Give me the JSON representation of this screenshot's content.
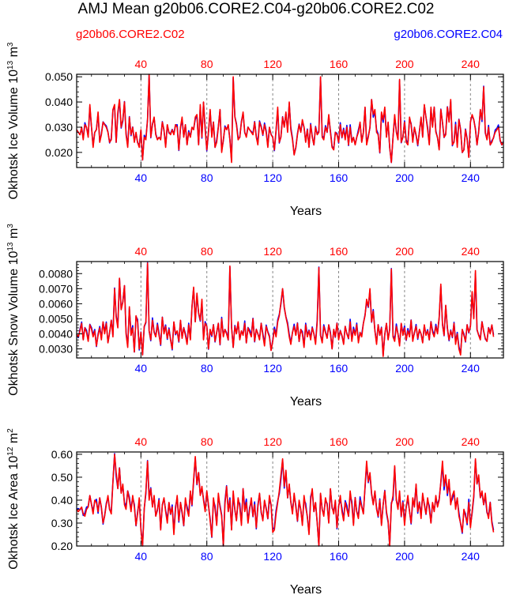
{
  "title": "AMJ Mean g20b06.CORE2.C04-g20b06.CORE2.C02",
  "legend": {
    "left": "g20b06.CORE2.C02",
    "right": "g20b06.CORE2.C04",
    "left_color": "#ff0000",
    "right_color": "#0000ff"
  },
  "colors": {
    "c02": "#ff0000",
    "c04": "#0000ff",
    "grid": "#888888"
  },
  "chart_data": [
    {
      "type": "line",
      "name": "ice-volume",
      "ylabel_main": "Okhotsk Ice Volume 10",
      "ylabel_exp": "13",
      "ylabel_unit": " m",
      "ylabel_unit_exp": "3",
      "xlabel": "Years",
      "xlim": [
        1,
        260
      ],
      "ylim": [
        0.014,
        0.051
      ],
      "yticks": [
        0.02,
        0.03,
        0.04,
        0.05
      ],
      "ytick_labels": [
        "0.020",
        "0.030",
        "0.040",
        "0.050"
      ],
      "xticks": [
        40,
        80,
        120,
        160,
        200,
        240
      ],
      "xtick_labels": [
        "40",
        "80",
        "120",
        "160",
        "200",
        "240"
      ],
      "vlines": [
        40,
        80,
        120,
        160,
        200,
        240
      ],
      "series": [
        {
          "name": "g20b06.CORE2.C04",
          "color": "#0000ff",
          "noise": 0.0007,
          "values": []
        },
        {
          "name": "g20b06.CORE2.C02",
          "color": "#ff0000",
          "values": [
            0.029,
            0.028,
            0.027,
            0.03,
            0.025,
            0.031,
            0.03,
            0.026,
            0.039,
            0.03,
            0.022,
            0.028,
            0.029,
            0.036,
            0.024,
            0.027,
            0.032,
            0.031,
            0.03,
            0.028,
            0.024,
            0.025,
            0.037,
            0.039,
            0.024,
            0.036,
            0.041,
            0.03,
            0.033,
            0.04,
            0.027,
            0.022,
            0.034,
            0.027,
            0.03,
            0.024,
            0.028,
            0.024,
            0.022,
            0.029,
            0.017,
            0.026,
            0.025,
            0.033,
            0.051,
            0.026,
            0.031,
            0.034,
            0.027,
            0.025,
            0.026,
            0.025,
            0.032,
            0.029,
            0.022,
            0.031,
            0.028,
            0.027,
            0.029,
            0.027,
            0.031,
            0.03,
            0.021,
            0.03,
            0.034,
            0.026,
            0.031,
            0.023,
            0.028,
            0.026,
            0.03,
            0.029,
            0.034,
            0.035,
            0.023,
            0.039,
            0.026,
            0.04,
            0.029,
            0.021,
            0.028,
            0.037,
            0.026,
            0.032,
            0.022,
            0.024,
            0.03,
            0.037,
            0.02,
            0.025,
            0.03,
            0.029,
            0.031,
            0.025,
            0.016,
            0.05,
            0.034,
            0.031,
            0.025,
            0.026,
            0.032,
            0.036,
            0.028,
            0.026,
            0.03,
            0.029,
            0.028,
            0.027,
            0.032,
            0.026,
            0.023,
            0.032,
            0.03,
            0.027,
            0.031,
            0.028,
            0.022,
            0.03,
            0.027,
            0.026,
            0.021,
            0.029,
            0.038,
            0.024,
            0.026,
            0.034,
            0.03,
            0.036,
            0.028,
            0.04,
            0.029,
            0.025,
            0.019,
            0.022,
            0.027,
            0.031,
            0.028,
            0.033,
            0.03,
            0.024,
            0.029,
            0.022,
            0.031,
            0.026,
            0.023,
            0.03,
            0.027,
            0.028,
            0.05,
            0.026,
            0.025,
            0.03,
            0.028,
            0.035,
            0.028,
            0.022,
            0.021,
            0.028,
            0.027,
            0.024,
            0.031,
            0.026,
            0.029,
            0.025,
            0.03,
            0.023,
            0.03,
            0.024,
            0.026,
            0.023,
            0.026,
            0.028,
            0.032,
            0.024,
            0.028,
            0.038,
            0.023,
            0.026,
            0.03,
            0.041,
            0.035,
            0.037,
            0.028,
            0.027,
            0.02,
            0.036,
            0.033,
            0.038,
            0.026,
            0.032,
            0.022,
            0.016,
            0.026,
            0.035,
            0.028,
            0.025,
            0.049,
            0.024,
            0.026,
            0.032,
            0.024,
            0.023,
            0.034,
            0.031,
            0.024,
            0.03,
            0.027,
            0.023,
            0.028,
            0.034,
            0.026,
            0.039,
            0.034,
            0.029,
            0.023,
            0.038,
            0.03,
            0.038,
            0.028,
            0.026,
            0.021,
            0.037,
            0.032,
            0.026,
            0.027,
            0.038,
            0.032,
            0.041,
            0.023,
            0.024,
            0.031,
            0.022,
            0.033,
            0.029,
            0.02,
            0.021,
            0.029,
            0.025,
            0.018,
            0.032,
            0.035,
            0.033,
            0.029,
            0.023,
            0.028,
            0.037,
            0.033,
            0.046,
            0.028,
            0.025,
            0.03,
            0.023,
            0.024,
            0.026,
            0.028,
            0.029,
            0.03,
            0.025,
            0.023,
            0.024
          ]
        }
      ]
    },
    {
      "type": "line",
      "name": "snow-volume",
      "ylabel_main": "Okhotsk Snow Volume 10",
      "ylabel_exp": "13",
      "ylabel_unit": " m",
      "ylabel_unit_exp": "3",
      "xlabel": "Years",
      "xlim": [
        1,
        260
      ],
      "ylim": [
        0.0024,
        0.0088
      ],
      "yticks": [
        0.003,
        0.004,
        0.005,
        0.006,
        0.007,
        0.008
      ],
      "ytick_labels": [
        "0.0030",
        "0.0040",
        "0.0050",
        "0.0060",
        "0.0070",
        "0.0080"
      ],
      "xticks": [
        40,
        80,
        120,
        160,
        200,
        240
      ],
      "xtick_labels": [
        "40",
        "80",
        "120",
        "160",
        "200",
        "240"
      ],
      "vlines": [
        40,
        80,
        120,
        160,
        200,
        240
      ],
      "series": [
        {
          "name": "g20b06.CORE2.C04",
          "color": "#0000ff",
          "noise": 0.00012,
          "values": []
        },
        {
          "name": "g20b06.CORE2.C02",
          "color": "#ff0000",
          "values": [
            0.004,
            0.0038,
            0.0042,
            0.0047,
            0.0036,
            0.0044,
            0.0041,
            0.0035,
            0.0046,
            0.0043,
            0.0038,
            0.0042,
            0.0032,
            0.0039,
            0.0044,
            0.0036,
            0.0048,
            0.004,
            0.0047,
            0.0034,
            0.0041,
            0.0049,
            0.0038,
            0.007,
            0.0051,
            0.0044,
            0.0077,
            0.0056,
            0.0061,
            0.0072,
            0.004,
            0.0031,
            0.0058,
            0.0039,
            0.0044,
            0.0028,
            0.0052,
            0.0048,
            0.003,
            0.0041,
            0.0026,
            0.0045,
            0.0048,
            0.0087,
            0.0042,
            0.0036,
            0.0049,
            0.0041,
            0.0038,
            0.0046,
            0.0039,
            0.0033,
            0.0051,
            0.004,
            0.0045,
            0.0037,
            0.0043,
            0.0036,
            0.003,
            0.0048,
            0.004,
            0.0042,
            0.0035,
            0.0049,
            0.0037,
            0.0044,
            0.0039,
            0.0033,
            0.0046,
            0.0036,
            0.0058,
            0.0071,
            0.0048,
            0.0067,
            0.0054,
            0.0049,
            0.0063,
            0.0036,
            0.0047,
            0.0045,
            0.003,
            0.0043,
            0.0039,
            0.0046,
            0.0035,
            0.0041,
            0.0047,
            0.0033,
            0.005,
            0.0038,
            0.0043,
            0.004,
            0.0036,
            0.0085,
            0.0044,
            0.0031,
            0.0045,
            0.004,
            0.0048,
            0.0036,
            0.0042,
            0.0039,
            0.0047,
            0.0034,
            0.0044,
            0.0041,
            0.0038,
            0.005,
            0.0035,
            0.0043,
            0.004,
            0.0036,
            0.0047,
            0.0039,
            0.0032,
            0.0045,
            0.0041,
            0.0038,
            0.0029,
            0.0035,
            0.0043,
            0.0038,
            0.0048,
            0.0052,
            0.0061,
            0.007,
            0.0058,
            0.0051,
            0.0046,
            0.0038,
            0.0033,
            0.0041,
            0.0045,
            0.0039,
            0.0047,
            0.0035,
            0.0043,
            0.004,
            0.0031,
            0.0046,
            0.0038,
            0.0042,
            0.0036,
            0.0044,
            0.004,
            0.0033,
            0.0048,
            0.0084,
            0.0039,
            0.0034,
            0.0045,
            0.0041,
            0.0037,
            0.0046,
            0.004,
            0.003,
            0.0043,
            0.0038,
            0.0047,
            0.0036,
            0.0042,
            0.0039,
            0.0033,
            0.0045,
            0.004,
            0.0037,
            0.0048,
            0.0035,
            0.0043,
            0.0039,
            0.0046,
            0.0034,
            0.0041,
            0.0038,
            0.0047,
            0.0052,
            0.0063,
            0.0058,
            0.007,
            0.0048,
            0.0055,
            0.0042,
            0.0033,
            0.0046,
            0.0039,
            0.0044,
            0.0025,
            0.004,
            0.0047,
            0.0036,
            0.0043,
            0.0083,
            0.0038,
            0.0035,
            0.0045,
            0.004,
            0.0032,
            0.0047,
            0.0039,
            0.0044,
            0.0036,
            0.0042,
            0.0038,
            0.0049,
            0.0035,
            0.0041,
            0.0045,
            0.0037,
            0.0043,
            0.004,
            0.0034,
            0.0046,
            0.0039,
            0.0042,
            0.0036,
            0.0048,
            0.0041,
            0.0038,
            0.0045,
            0.004,
            0.0051,
            0.0073,
            0.0046,
            0.0039,
            0.0059,
            0.0044,
            0.0036,
            0.0042,
            0.0038,
            0.0047,
            0.0033,
            0.004,
            0.003,
            0.0026,
            0.0043,
            0.0039,
            0.0035,
            0.0046,
            0.0041,
            0.0045,
            0.0068,
            0.005,
            0.0082,
            0.0043,
            0.0039,
            0.0036,
            0.0048,
            0.0042,
            0.0037,
            0.0035,
            0.0044,
            0.004,
            0.0046,
            0.0038
          ]
        }
      ]
    },
    {
      "type": "line",
      "name": "ice-area",
      "ylabel_main": "Okhotsk Ice Area 10",
      "ylabel_exp": "12",
      "ylabel_unit": " m",
      "ylabel_unit_exp": "2",
      "xlabel": "Years",
      "xlim": [
        1,
        260
      ],
      "ylim": [
        0.2,
        0.61
      ],
      "yticks": [
        0.2,
        0.3,
        0.4,
        0.5,
        0.6
      ],
      "ytick_labels": [
        "0.20",
        "0.30",
        "0.40",
        "0.50",
        "0.60"
      ],
      "xticks": [
        40,
        80,
        120,
        160,
        200,
        240
      ],
      "xtick_labels": [
        "40",
        "80",
        "120",
        "160",
        "200",
        "240"
      ],
      "vlines": [
        40,
        80,
        120,
        160,
        200,
        240
      ],
      "series": [
        {
          "name": "g20b06.CORE2.C04",
          "color": "#0000ff",
          "noise": 0.012,
          "values": []
        },
        {
          "name": "g20b06.CORE2.C02",
          "color": "#ff0000",
          "values": [
            0.36,
            0.35,
            0.36,
            0.37,
            0.34,
            0.33,
            0.36,
            0.37,
            0.42,
            0.38,
            0.34,
            0.4,
            0.39,
            0.35,
            0.41,
            0.37,
            0.3,
            0.33,
            0.38,
            0.42,
            0.36,
            0.34,
            0.48,
            0.6,
            0.52,
            0.45,
            0.54,
            0.43,
            0.47,
            0.38,
            0.36,
            0.44,
            0.4,
            0.35,
            0.42,
            0.37,
            0.29,
            0.34,
            0.41,
            0.27,
            0.2,
            0.36,
            0.44,
            0.57,
            0.4,
            0.45,
            0.37,
            0.42,
            0.33,
            0.36,
            0.4,
            0.27,
            0.38,
            0.41,
            0.35,
            0.3,
            0.39,
            0.34,
            0.37,
            0.25,
            0.36,
            0.42,
            0.31,
            0.39,
            0.35,
            0.29,
            0.41,
            0.36,
            0.33,
            0.44,
            0.38,
            0.49,
            0.59,
            0.47,
            0.52,
            0.42,
            0.46,
            0.4,
            0.35,
            0.44,
            0.38,
            0.31,
            0.24,
            0.41,
            0.36,
            0.29,
            0.43,
            0.37,
            0.33,
            0.2,
            0.38,
            0.46,
            0.35,
            0.4,
            0.27,
            0.44,
            0.36,
            0.31,
            0.41,
            0.37,
            0.29,
            0.45,
            0.35,
            0.39,
            0.3,
            0.36,
            0.41,
            0.33,
            0.38,
            0.28,
            0.37,
            0.43,
            0.35,
            0.31,
            0.4,
            0.36,
            0.32,
            0.42,
            0.38,
            0.26,
            0.27,
            0.34,
            0.39,
            0.44,
            0.51,
            0.58,
            0.46,
            0.53,
            0.41,
            0.47,
            0.39,
            0.34,
            0.43,
            0.37,
            0.31,
            0.4,
            0.36,
            0.29,
            0.42,
            0.37,
            0.33,
            0.25,
            0.4,
            0.45,
            0.35,
            0.39,
            0.3,
            0.2,
            0.43,
            0.36,
            0.33,
            0.41,
            0.38,
            0.3,
            0.45,
            0.37,
            0.34,
            0.4,
            0.28,
            0.37,
            0.42,
            0.35,
            0.31,
            0.39,
            0.36,
            0.33,
            0.44,
            0.38,
            0.29,
            0.41,
            0.35,
            0.32,
            0.4,
            0.37,
            0.34,
            0.46,
            0.57,
            0.48,
            0.52,
            0.43,
            0.38,
            0.44,
            0.36,
            0.33,
            0.4,
            0.29,
            0.38,
            0.44,
            0.35,
            0.31,
            0.2,
            0.38,
            0.42,
            0.55,
            0.4,
            0.36,
            0.44,
            0.33,
            0.39,
            0.29,
            0.37,
            0.42,
            0.35,
            0.3,
            0.41,
            0.37,
            0.47,
            0.35,
            0.39,
            0.32,
            0.43,
            0.38,
            0.34,
            0.41,
            0.36,
            0.3,
            0.39,
            0.35,
            0.42,
            0.37,
            0.4,
            0.48,
            0.57,
            0.46,
            0.51,
            0.43,
            0.49,
            0.38,
            0.42,
            0.44,
            0.36,
            0.41,
            0.33,
            0.3,
            0.26,
            0.36,
            0.33,
            0.3,
            0.39,
            0.28,
            0.35,
            0.42,
            0.58,
            0.47,
            0.51,
            0.41,
            0.44,
            0.38,
            0.43,
            0.35,
            0.32,
            0.39,
            0.3,
            0.26
          ]
        }
      ]
    }
  ]
}
